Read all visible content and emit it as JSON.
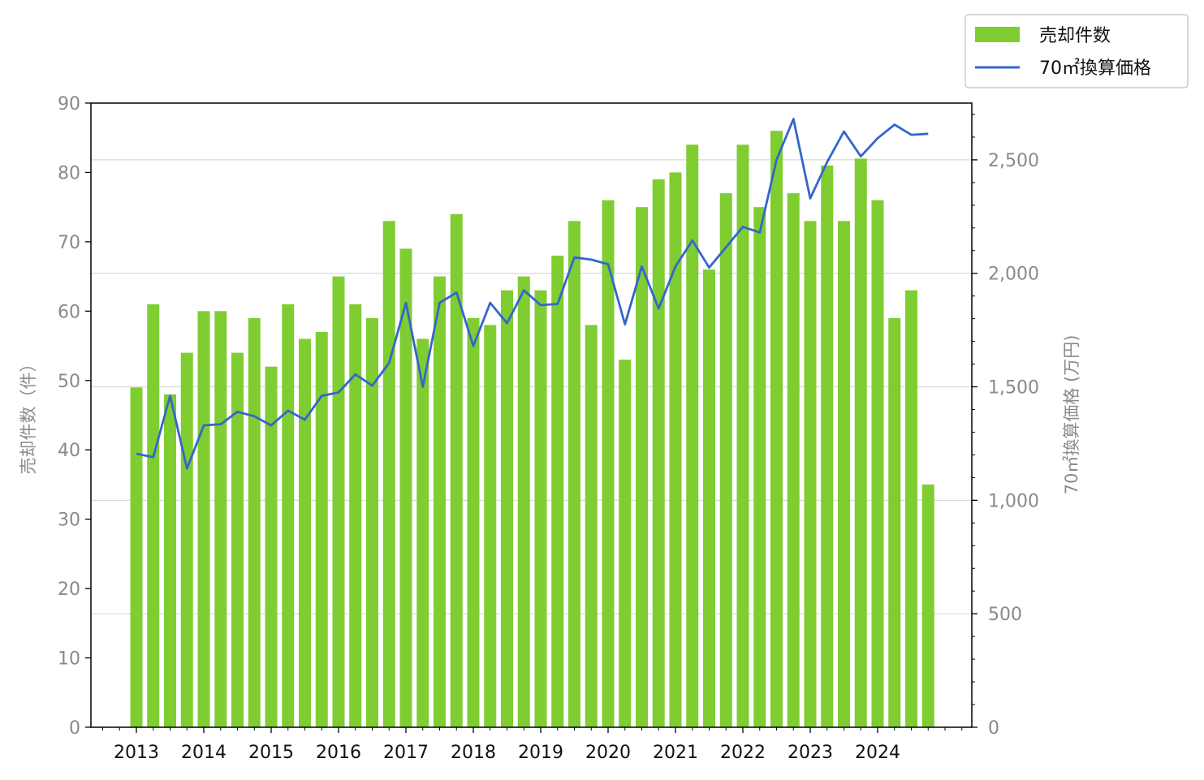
{
  "chart_data": {
    "type": "bar",
    "combo": "bar+line, dual y-axis",
    "x_tick_labels": [
      "2013",
      "2014",
      "2015",
      "2016",
      "2017",
      "2018",
      "2019",
      "2020",
      "2021",
      "2022",
      "2023",
      "2024"
    ],
    "periods": [
      "2013Q1",
      "2013Q2",
      "2013Q3",
      "2013Q4",
      "2014Q1",
      "2014Q2",
      "2014Q3",
      "2014Q4",
      "2015Q1",
      "2015Q2",
      "2015Q3",
      "2015Q4",
      "2016Q1",
      "2016Q2",
      "2016Q3",
      "2016Q4",
      "2017Q1",
      "2017Q2",
      "2017Q3",
      "2017Q4",
      "2018Q1",
      "2018Q2",
      "2018Q3",
      "2018Q4",
      "2019Q1",
      "2019Q2",
      "2019Q3",
      "2019Q4",
      "2020Q1",
      "2020Q2",
      "2020Q3",
      "2020Q4",
      "2021Q1",
      "2021Q2",
      "2021Q3",
      "2021Q4",
      "2022Q1",
      "2022Q2",
      "2022Q3",
      "2022Q4",
      "2023Q1",
      "2023Q2",
      "2023Q3",
      "2023Q4",
      "2024Q1",
      "2024Q2",
      "2024Q3",
      "2024Q4"
    ],
    "series": [
      {
        "name": "売却件数",
        "type": "bar",
        "axis": "left",
        "color": "#7fcd31",
        "values": [
          49,
          61,
          48,
          54,
          60,
          60,
          54,
          59,
          52,
          61,
          56,
          57,
          65,
          61,
          59,
          73,
          69,
          56,
          65,
          74,
          59,
          58,
          63,
          65,
          63,
          68,
          73,
          58,
          76,
          53,
          75,
          79,
          80,
          84,
          66,
          77,
          84,
          75,
          86,
          77,
          73,
          81,
          73,
          82,
          76,
          59,
          63,
          35
        ]
      },
      {
        "name": "70㎡換算価格",
        "type": "line",
        "axis": "right",
        "color": "#3366cc",
        "values": [
          1205,
          1190,
          1460,
          1140,
          1330,
          1335,
          1390,
          1370,
          1330,
          1395,
          1355,
          1460,
          1475,
          1555,
          1505,
          1605,
          1870,
          1500,
          1870,
          1915,
          1680,
          1870,
          1780,
          1925,
          1860,
          1865,
          2070,
          2060,
          2040,
          1775,
          2030,
          1845,
          2030,
          2145,
          2025,
          2115,
          2205,
          2180,
          2500,
          2680,
          2330,
          2490,
          2625,
          2515,
          2595,
          2655,
          2610,
          2615
        ]
      }
    ],
    "ylabel_left": "売却件数（件）",
    "ylabel_right": "70㎡換算価格 (万円)",
    "ylim_left": [
      0,
      90
    ],
    "yticks_left": [
      "0",
      "10",
      "20",
      "30",
      "40",
      "50",
      "60",
      "70",
      "80",
      "90"
    ],
    "ylim_right": [
      0,
      2750
    ],
    "yticks_right": [
      "0",
      "500",
      "1,000",
      "1,500",
      "2,000",
      "2,500"
    ],
    "grid": "horizontal, right axis",
    "legend_placement": "top-right, outside plot"
  }
}
